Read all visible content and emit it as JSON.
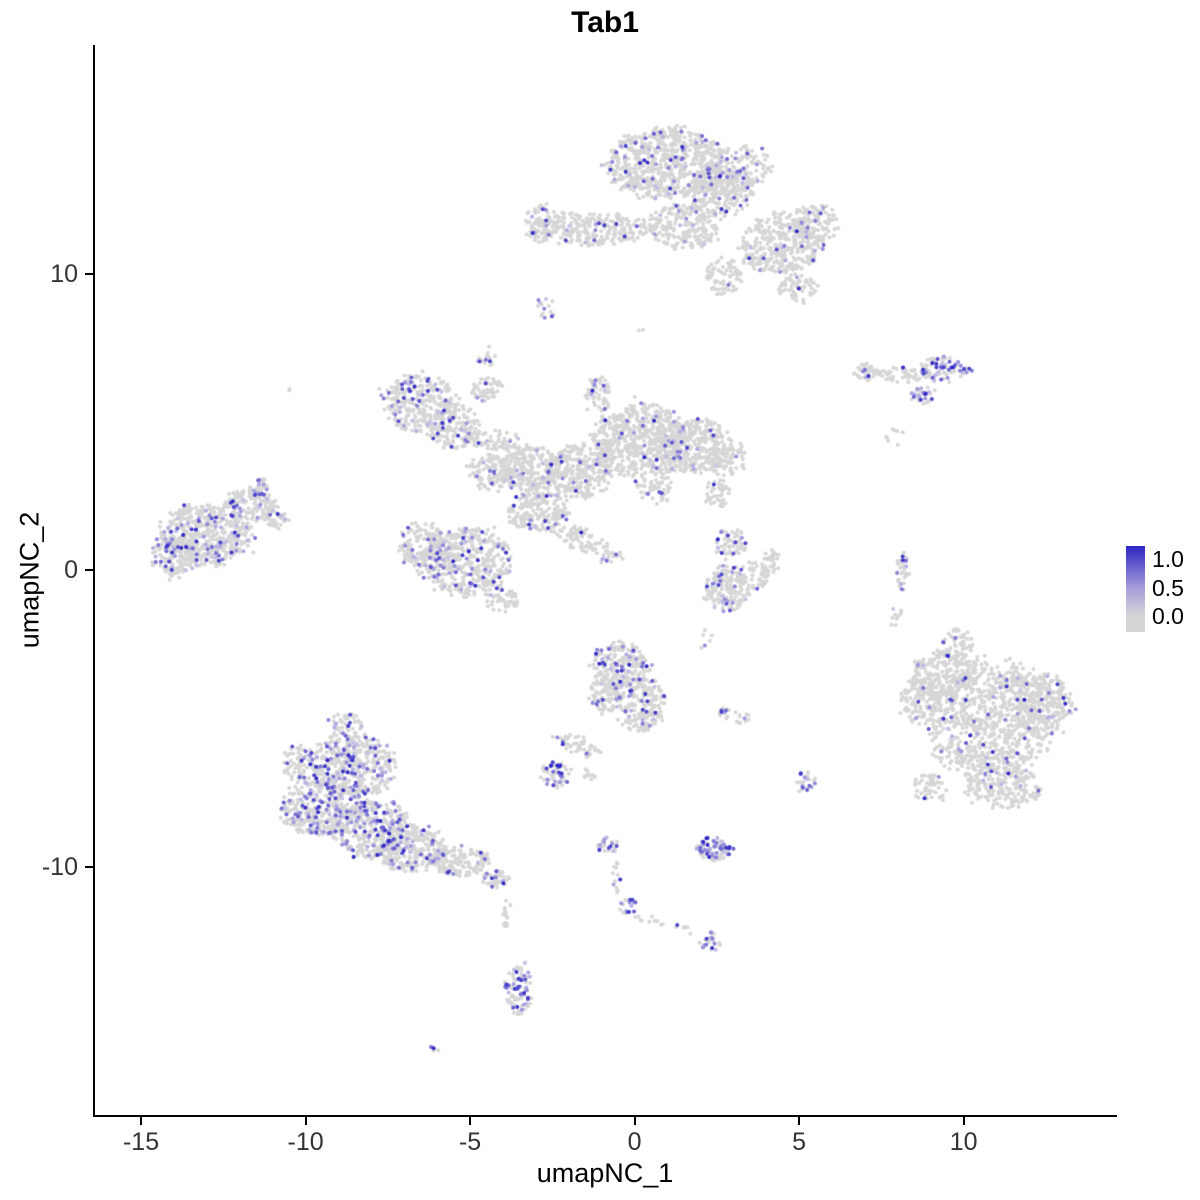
{
  "chart_data": {
    "type": "scatter",
    "title": "Tab1",
    "xlabel": "umapNC_1",
    "ylabel": "umapNC_2",
    "xlim": [
      -16.4,
      14.6
    ],
    "ylim": [
      -18.35,
      17.7
    ],
    "x_ticks": [
      "-15",
      "-10",
      "-5",
      "0",
      "5",
      "10"
    ],
    "x_tick_values": [
      -15,
      -10,
      -5,
      0,
      5,
      10
    ],
    "y_ticks": [
      "-10",
      "0",
      "10"
    ],
    "y_tick_values": [
      -10,
      0,
      10
    ],
    "grid": false,
    "legend": {
      "position": "right",
      "labels": [
        "1.0",
        "0.5",
        "0.0"
      ],
      "values": [
        1.0,
        0.5,
        0.0
      ],
      "high_color": "#2E26C3",
      "mid_color": "#A39BD9",
      "low_color": "#D6D6D6"
    },
    "point_style": {
      "radius_px": 2.0,
      "base_color": "#D6D6D6",
      "expr_low_color": "#C9C3E6",
      "expr_high_color": "#2E26C3"
    },
    "cluster_fields": [
      "center_x",
      "center_y",
      "radius_x",
      "radius_y",
      "n_points",
      "expressing_fraction",
      "rotation_rad"
    ],
    "clusters": [
      [
        1.0,
        13.7,
        1.8,
        1.15,
        700,
        0.07,
        0
      ],
      [
        3.2,
        13.6,
        0.9,
        0.7,
        130,
        0.08,
        0
      ],
      [
        2.6,
        12.8,
        1.0,
        0.8,
        240,
        0.07,
        0
      ],
      [
        4.4,
        11.0,
        1.25,
        1.0,
        340,
        0.06,
        0
      ],
      [
        5.5,
        11.7,
        0.7,
        0.6,
        110,
        0.05,
        0
      ],
      [
        -1.3,
        11.5,
        1.9,
        0.55,
        260,
        0.05,
        0
      ],
      [
        -2.8,
        11.7,
        0.5,
        0.65,
        80,
        0.06,
        0
      ],
      [
        1.5,
        11.6,
        1.1,
        0.75,
        220,
        0.06,
        0
      ],
      [
        2.7,
        9.9,
        0.6,
        0.6,
        70,
        0.05,
        0
      ],
      [
        5.0,
        9.5,
        0.6,
        0.5,
        60,
        0.05,
        0
      ],
      [
        -2.7,
        8.8,
        0.28,
        0.38,
        14,
        0.25,
        0
      ],
      [
        -4.5,
        7.2,
        0.3,
        0.3,
        16,
        0.25,
        0
      ],
      [
        7.1,
        6.7,
        0.45,
        0.3,
        40,
        0.1,
        0
      ],
      [
        8.2,
        6.6,
        0.8,
        0.25,
        50,
        0.1,
        0
      ],
      [
        9.4,
        6.75,
        0.8,
        0.45,
        90,
        0.35,
        0
      ],
      [
        8.8,
        5.9,
        0.4,
        0.3,
        30,
        0.45,
        0
      ],
      [
        7.9,
        4.5,
        0.3,
        0.3,
        8,
        0.1,
        0
      ],
      [
        -6.5,
        5.6,
        1.15,
        0.95,
        300,
        0.12,
        0
      ],
      [
        -5.5,
        4.8,
        0.8,
        0.7,
        160,
        0.1,
        0
      ],
      [
        -4.5,
        6.1,
        0.5,
        0.4,
        50,
        0.08,
        0
      ],
      [
        -4.3,
        4.4,
        0.8,
        0.35,
        60,
        0.06,
        0
      ],
      [
        0.2,
        4.4,
        1.5,
        1.2,
        600,
        0.05,
        0
      ],
      [
        1.8,
        4.2,
        1.1,
        0.9,
        300,
        0.06,
        0
      ],
      [
        2.8,
        3.8,
        0.6,
        0.6,
        90,
        0.05,
        0
      ],
      [
        -1.1,
        5.9,
        0.4,
        0.6,
        60,
        0.08,
        0
      ],
      [
        -1.7,
        3.3,
        1.0,
        0.9,
        300,
        0.06,
        0
      ],
      [
        -3.2,
        3.4,
        0.9,
        0.8,
        250,
        0.07,
        0
      ],
      [
        -4.4,
        3.3,
        0.7,
        0.6,
        120,
        0.06,
        0
      ],
      [
        -2.9,
        2.0,
        0.9,
        0.7,
        200,
        0.08,
        0
      ],
      [
        -1.4,
        0.9,
        1.1,
        0.4,
        90,
        0.06,
        -0.5
      ],
      [
        0.6,
        2.8,
        0.5,
        0.5,
        60,
        0.05,
        0
      ],
      [
        2.5,
        2.6,
        0.4,
        0.5,
        40,
        0.05,
        0
      ],
      [
        -5.1,
        0.3,
        1.35,
        1.1,
        450,
        0.1,
        0
      ],
      [
        -6.3,
        0.8,
        0.8,
        0.8,
        180,
        0.08,
        0
      ],
      [
        -4.0,
        -1.0,
        0.5,
        0.4,
        50,
        0.06,
        0
      ],
      [
        -13.0,
        1.2,
        1.35,
        1.0,
        480,
        0.17,
        0
      ],
      [
        -14.0,
        0.5,
        0.7,
        0.7,
        140,
        0.15,
        0
      ],
      [
        -11.7,
        2.2,
        0.8,
        0.55,
        140,
        0.12,
        0
      ],
      [
        -11.4,
        2.8,
        0.3,
        0.3,
        25,
        0.3,
        0
      ],
      [
        -10.9,
        1.7,
        0.4,
        0.3,
        30,
        0.1,
        0
      ],
      [
        -10.5,
        6.1,
        0.1,
        0.1,
        2,
        0,
        0
      ],
      [
        2.9,
        0.9,
        0.5,
        0.5,
        60,
        0.1,
        0
      ],
      [
        2.8,
        -0.6,
        0.65,
        0.75,
        160,
        0.08,
        0
      ],
      [
        3.6,
        -0.2,
        0.5,
        0.5,
        60,
        0.06,
        0
      ],
      [
        4.2,
        0.3,
        0.3,
        0.4,
        25,
        0.05,
        0
      ],
      [
        8.15,
        -0.1,
        0.18,
        0.78,
        40,
        0.25,
        0
      ],
      [
        7.9,
        -1.6,
        0.3,
        0.3,
        10,
        0.1,
        0
      ],
      [
        10.8,
        -5.0,
        1.95,
        1.9,
        900,
        0.045,
        0
      ],
      [
        9.3,
        -3.6,
        0.9,
        0.9,
        200,
        0.05,
        0
      ],
      [
        9.8,
        -2.5,
        0.5,
        0.5,
        60,
        0.05,
        0
      ],
      [
        8.6,
        -4.4,
        0.6,
        0.8,
        90,
        0.05,
        0
      ],
      [
        12.4,
        -4.5,
        0.9,
        1.0,
        200,
        0.05,
        0
      ],
      [
        11.2,
        -7.3,
        1.2,
        0.7,
        200,
        0.04,
        0
      ],
      [
        9.0,
        -7.3,
        0.5,
        0.5,
        50,
        0.06,
        0
      ],
      [
        -0.4,
        -3.2,
        0.85,
        0.8,
        220,
        0.17,
        0
      ],
      [
        0.2,
        -4.5,
        0.7,
        0.9,
        200,
        0.12,
        0
      ],
      [
        -0.9,
        -4.2,
        0.5,
        0.6,
        90,
        0.12,
        0
      ],
      [
        -1.7,
        -5.9,
        0.8,
        0.3,
        50,
        0.1,
        -0.45
      ],
      [
        -2.4,
        -6.9,
        0.45,
        0.45,
        60,
        0.3,
        0
      ],
      [
        -1.4,
        -6.9,
        0.2,
        0.2,
        12,
        0.2,
        0
      ],
      [
        2.8,
        -4.8,
        0.25,
        0.2,
        14,
        0.25,
        0
      ],
      [
        3.3,
        -5.0,
        0.2,
        0.2,
        10,
        0.25,
        0
      ],
      [
        2.1,
        -2.3,
        0.3,
        0.3,
        6,
        0.1,
        0
      ],
      [
        0.2,
        8.1,
        0.1,
        0.1,
        2,
        0,
        0
      ],
      [
        -8.6,
        -6.6,
        1.3,
        1.05,
        420,
        0.22,
        0
      ],
      [
        -9.6,
        -8.0,
        1.1,
        0.95,
        330,
        0.22,
        0
      ],
      [
        -8.0,
        -8.7,
        1.2,
        0.95,
        380,
        0.2,
        0
      ],
      [
        -6.8,
        -9.4,
        1.0,
        0.78,
        250,
        0.14,
        0
      ],
      [
        -8.8,
        -5.2,
        0.5,
        0.4,
        50,
        0.15,
        0
      ],
      [
        -10.2,
        -6.5,
        0.5,
        0.6,
        70,
        0.15,
        0
      ],
      [
        -5.3,
        -9.8,
        0.9,
        0.5,
        140,
        0.1,
        0
      ],
      [
        -4.2,
        -10.4,
        0.4,
        0.3,
        40,
        0.2,
        0
      ],
      [
        -3.9,
        -11.5,
        0.15,
        0.6,
        14,
        0.1,
        0
      ],
      [
        5.2,
        -7.1,
        0.3,
        0.38,
        25,
        0.4,
        0
      ],
      [
        2.4,
        -9.4,
        0.52,
        0.38,
        90,
        0.45,
        0
      ],
      [
        -0.8,
        -9.3,
        0.3,
        0.3,
        25,
        0.45,
        0
      ],
      [
        -0.55,
        -10.4,
        0.12,
        0.6,
        12,
        0.15,
        0
      ],
      [
        -0.2,
        -11.3,
        0.3,
        0.28,
        20,
        0.35,
        0
      ],
      [
        0.9,
        -11.9,
        0.95,
        0.15,
        16,
        0.15,
        -0.3
      ],
      [
        2.3,
        -12.5,
        0.35,
        0.3,
        25,
        0.4,
        0
      ],
      [
        -3.5,
        -14.1,
        0.4,
        0.88,
        90,
        0.3,
        0
      ],
      [
        -6.1,
        -16.1,
        0.15,
        0.15,
        4,
        0.5,
        0
      ]
    ]
  }
}
